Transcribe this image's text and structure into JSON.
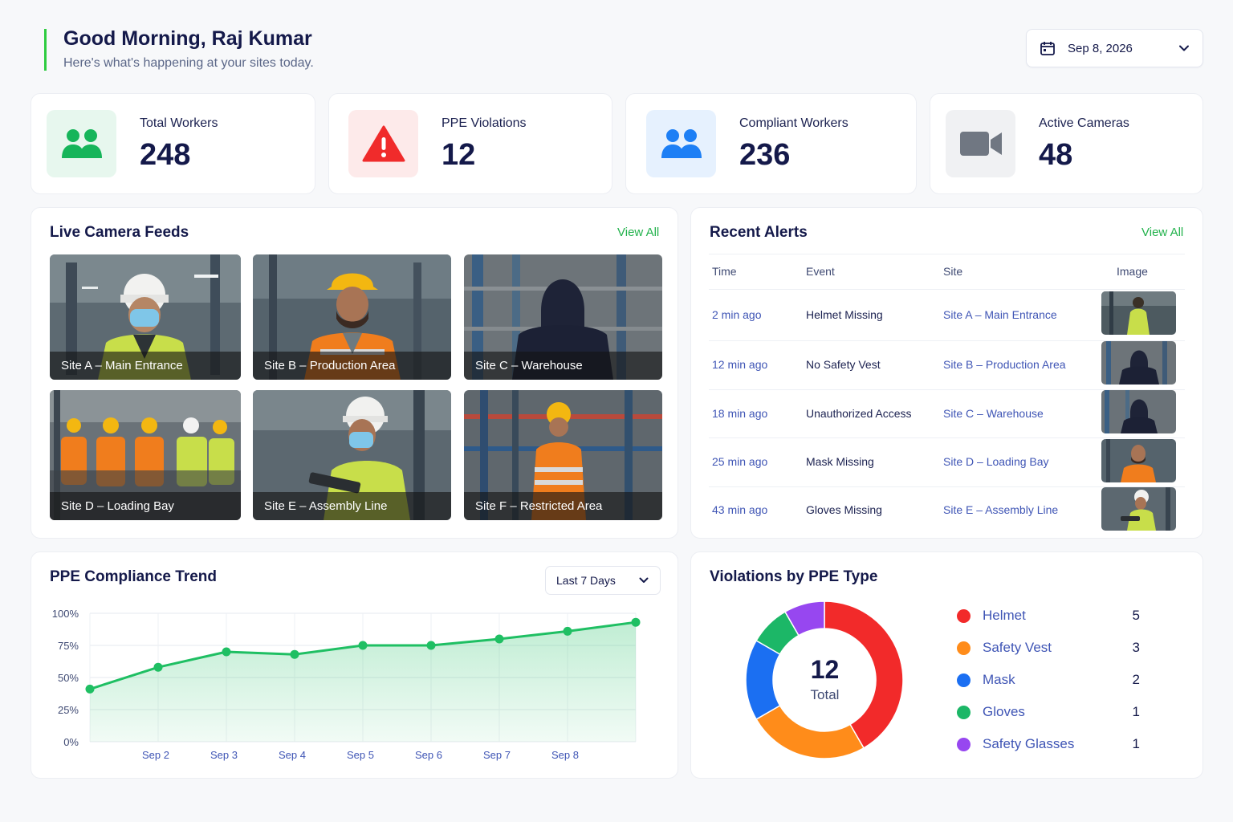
{
  "header": {
    "greeting": "Good Morning, Raj Kumar",
    "subtitle": "Here's what's happening at your sites today.",
    "date": "Sep 8, 2026"
  },
  "stats": [
    {
      "label": "Total Workers",
      "value": "248",
      "icon": "workers-icon",
      "color": "#16b55a",
      "bg": "#e7f7ee"
    },
    {
      "label": "PPE Violations",
      "value": "12",
      "icon": "warning-icon",
      "color": "#f02b2b",
      "bg": "#fdeaea"
    },
    {
      "label": "Compliant Workers",
      "value": "236",
      "icon": "people-icon",
      "color": "#1d7ff5",
      "bg": "#e6f1fe"
    },
    {
      "label": "Active Cameras",
      "value": "48",
      "icon": "video-camera-icon",
      "color": "#707782",
      "bg": "#f0f1f3"
    }
  ],
  "feeds": {
    "title": "Live Camera Feeds",
    "view_all": "View All",
    "items": [
      {
        "label": "Site A – Main Entrance"
      },
      {
        "label": "Site B – Production Area"
      },
      {
        "label": "Site C – Warehouse"
      },
      {
        "label": "Site D – Loading Bay"
      },
      {
        "label": "Site E – Assembly Line"
      },
      {
        "label": "Site F – Restricted Area"
      }
    ]
  },
  "alerts": {
    "title": "Recent Alerts",
    "view_all": "View All",
    "columns": [
      "Time",
      "Event",
      "Site",
      "Image"
    ],
    "rows": [
      {
        "time": "2 min ago",
        "event": "Helmet Missing",
        "site": "Site A – Main Entrance"
      },
      {
        "time": "12 min ago",
        "event": "No Safety Vest",
        "site": "Site B – Production Area"
      },
      {
        "time": "18 min ago",
        "event": "Unauthorized Access",
        "site": "Site C – Warehouse"
      },
      {
        "time": "25 min ago",
        "event": "Mask Missing",
        "site": "Site D – Loading Bay"
      },
      {
        "time": "43 min ago",
        "event": "Gloves Missing",
        "site": "Site E – Assembly Line"
      }
    ]
  },
  "trend": {
    "title": "PPE Compliance Trend",
    "range": "Last 7 Days"
  },
  "violations": {
    "title": "Violations by PPE Type",
    "total": "12",
    "total_label": "Total"
  },
  "chart_data": [
    {
      "type": "area",
      "title": "PPE Compliance Trend",
      "x": [
        "",
        "Sep 2",
        "Sep 3",
        "Sep 4",
        "Sep 5",
        "Sep 6",
        "Sep 7",
        "Sep 8",
        ""
      ],
      "y_ticks": [
        "100%",
        "75%",
        "50%",
        "25%",
        "0%"
      ],
      "values": [
        41,
        58,
        70,
        68,
        75,
        75,
        80,
        86,
        93
      ],
      "ylim": [
        0,
        100
      ],
      "grid": true,
      "color": "#1fbf63"
    },
    {
      "type": "pie",
      "title": "Violations by PPE Type",
      "slices": [
        {
          "label": "Helmet",
          "value": 5,
          "color": "#f22a2a"
        },
        {
          "label": "Safety Vest",
          "value": 3,
          "color": "#ff8c1a"
        },
        {
          "label": "Mask",
          "value": 2,
          "color": "#1b6ff2"
        },
        {
          "label": "Gloves",
          "value": 1,
          "color": "#1cb767"
        },
        {
          "label": "Safety Glasses",
          "value": 1,
          "color": "#9747f0"
        }
      ]
    }
  ]
}
